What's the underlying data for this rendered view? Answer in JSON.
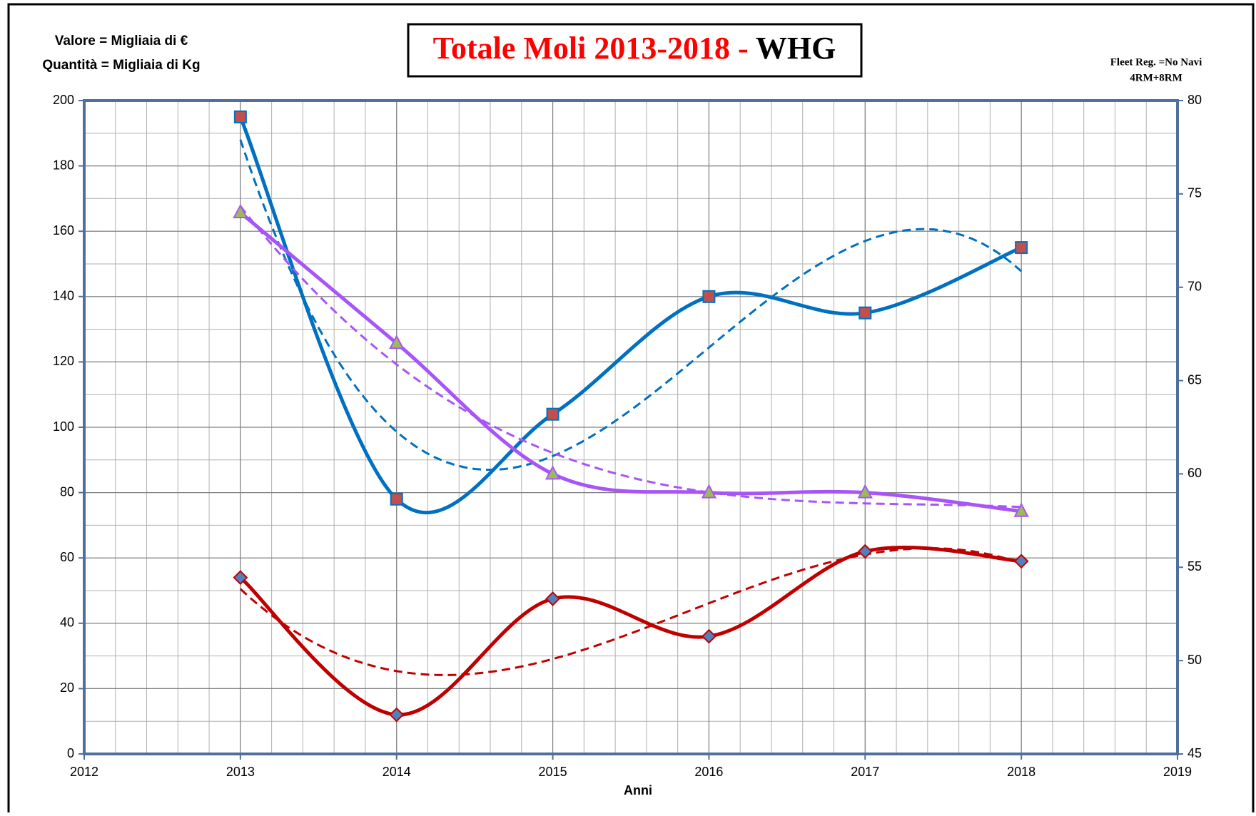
{
  "chart_data": {
    "type": "line",
    "title": [
      "Totale Moli 2013-2018 - ",
      "WHG"
    ],
    "title_colors": [
      "#ff0000",
      "#000000"
    ],
    "notes_left": [
      {
        "text": "Valore = Migliaia di €",
        "color": "#0070c0"
      },
      {
        "text": "Quantità = Migliaia di Kg",
        "color": "#c00000"
      }
    ],
    "notes_right": [
      {
        "text": "Fleet Reg. =No Navi",
        "color": "#a855f7"
      },
      {
        "text": "4RM+8RM",
        "color": "#a855f7"
      }
    ],
    "x_label": "Anni",
    "x": [
      2013,
      2014,
      2015,
      2016,
      2017,
      2018
    ],
    "xlim": [
      2012,
      2019
    ],
    "xticks": [
      2012,
      2013,
      2014,
      2015,
      2016,
      2017,
      2018,
      2019
    ],
    "ylim": [
      0,
      200
    ],
    "yticks": [
      0,
      20,
      40,
      60,
      80,
      100,
      120,
      140,
      160,
      180,
      200
    ],
    "y2lim": [
      45,
      80
    ],
    "y2ticks": [
      45,
      50,
      55,
      60,
      65,
      70,
      75,
      80
    ],
    "grid": true,
    "minor_grid": true,
    "smooth": true,
    "series": [
      {
        "name": "Valore",
        "color": "#0070c0",
        "marker": "square",
        "marker_fill": "#c0504d",
        "trendline": {
          "type": "polynomial",
          "order": 3
        },
        "values": [
          195,
          78,
          104,
          140,
          135,
          155
        ]
      },
      {
        "name": "Quantità",
        "color": "#c00000",
        "marker": "diamond",
        "marker_fill": "#4f81bd",
        "trendline": {
          "type": "polynomial",
          "order": 3
        },
        "values": [
          54,
          12,
          47.5,
          36,
          62,
          59
        ]
      },
      {
        "name": "Fleet Reg.",
        "color": "#a855f7",
        "marker": "triangle",
        "marker_fill": "#9bbb59",
        "axis": "y2",
        "trendline": {
          "type": "polynomial",
          "order": 3
        },
        "values": [
          74,
          67,
          60,
          59,
          59,
          58
        ]
      }
    ]
  }
}
